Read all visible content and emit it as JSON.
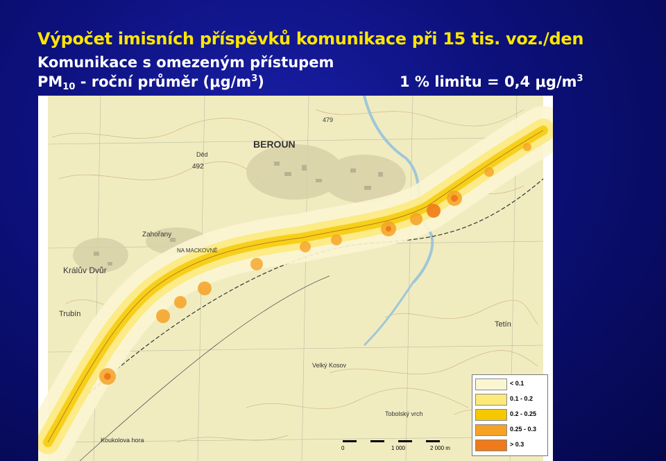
{
  "title": {
    "line1": "Výpočet imisních příspěvků komunikace při 15 tis. voz./den",
    "line2": "Komunikace s omezeným přístupem",
    "line3_main": "PM",
    "line3_sub": "10",
    "line3_rest": " - roční průměr (μg/m",
    "line3_sup": "3",
    "line3_end": ")",
    "limit_main": "1 % limitu = 0,4 μg/m",
    "limit_sup": "3"
  },
  "map_labels": {
    "beroun": "BEROUN",
    "kraluv_dvur": "Králův Dvůr",
    "zahorany": "Zahořany",
    "trubin": "Trubín",
    "na_mackovne": "NA MACKOVNĚ",
    "velky_kosov": "Velký Kosov",
    "tobolsky_vrch": "Tobolský vrch",
    "koukolova_hora": "Koukolova hora",
    "tetin": "Tetín",
    "hill_492": "492",
    "dedina": "Děd",
    "hill_479": "479"
  },
  "legend": {
    "items": [
      {
        "label": "< 0.1",
        "color": "#fbf6d2"
      },
      {
        "label": "0.1 - 0.2",
        "color": "#fbe97a"
      },
      {
        "label": "0.2 - 0.25",
        "color": "#f5c800"
      },
      {
        "label": "0.25 - 0.3",
        "color": "#f5a225"
      },
      {
        "label": "> 0.3",
        "color": "#ef7a1a"
      }
    ]
  },
  "scale": {
    "zero": "0",
    "mid": "1 000",
    "end": "2 000 m"
  }
}
